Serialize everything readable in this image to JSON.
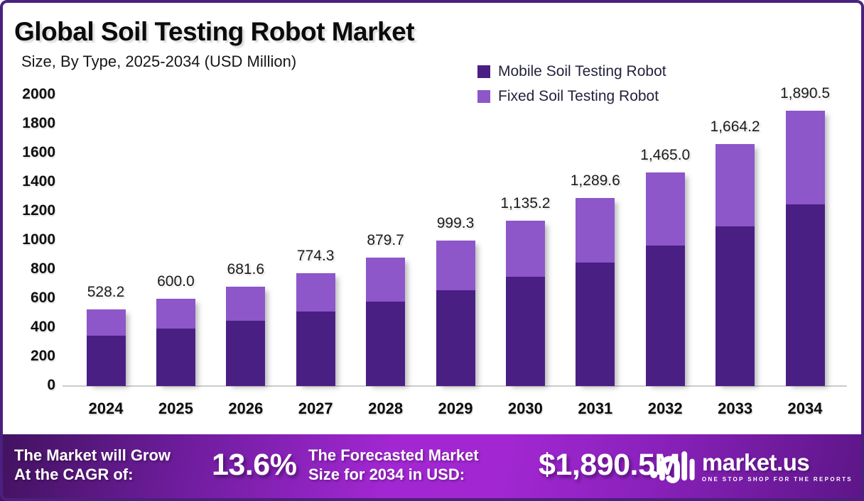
{
  "header": {
    "title": "Global Soil Testing Robot Market",
    "subtitle": "Size, By Type, 2025-2034 (USD Million)"
  },
  "chart_data": {
    "type": "bar",
    "stacked": true,
    "title": "Global Soil Testing Robot Market",
    "subtitle": "Size, By Type, 2025-2034 (USD Million)",
    "unit": "USD Million",
    "categories": [
      "2024",
      "2025",
      "2026",
      "2027",
      "2028",
      "2029",
      "2030",
      "2031",
      "2032",
      "2033",
      "2034"
    ],
    "series": [
      {
        "name": "Mobile Soil Testing Robot",
        "color": "#4a1f84",
        "values": [
          348.1,
          395.4,
          449.2,
          510.3,
          579.7,
          658.5,
          748.1,
          849.9,
          965.4,
          1096.7,
          1245.8
        ]
      },
      {
        "name": "Fixed Soil Testing Robot",
        "color": "#8d56c9",
        "values": [
          180.1,
          204.6,
          232.4,
          264.0,
          300.0,
          340.8,
          387.1,
          439.7,
          499.6,
          567.5,
          644.7
        ]
      }
    ],
    "totals": [
      528.2,
      600.0,
      681.6,
      774.3,
      879.7,
      999.3,
      1135.2,
      1289.6,
      1465.0,
      1664.2,
      1890.5
    ],
    "total_labels": [
      "528.2",
      "600.0",
      "681.6",
      "774.3",
      "879.7",
      "999.3",
      "1,135.2",
      "1,289.6",
      "1,465.0",
      "1,664.2",
      "1,890.5"
    ],
    "ylim": [
      0,
      2000
    ],
    "yticks": [
      0,
      200,
      400,
      600,
      800,
      1000,
      1200,
      1400,
      1600,
      1800,
      2000
    ],
    "grid": false,
    "legend_position": "top-right"
  },
  "banner": {
    "cagr_text_line1": "The Market will Grow",
    "cagr_text_line2": "At the CAGR of:",
    "cagr_value": "13.6%",
    "forecast_text_line1": "The Forecasted Market",
    "forecast_text_line2": "Size for 2034 in USD:",
    "forecast_value": "$1,890.5M",
    "logo_text": "market.us",
    "logo_tagline": "ONE STOP SHOP FOR THE REPORTS"
  },
  "colors": {
    "frame_border": "#4a2080",
    "mobile_series": "#4a1f84",
    "fixed_series": "#8d56c9",
    "banner_bright": "#a227d2",
    "banner_dark": "#42125f"
  }
}
